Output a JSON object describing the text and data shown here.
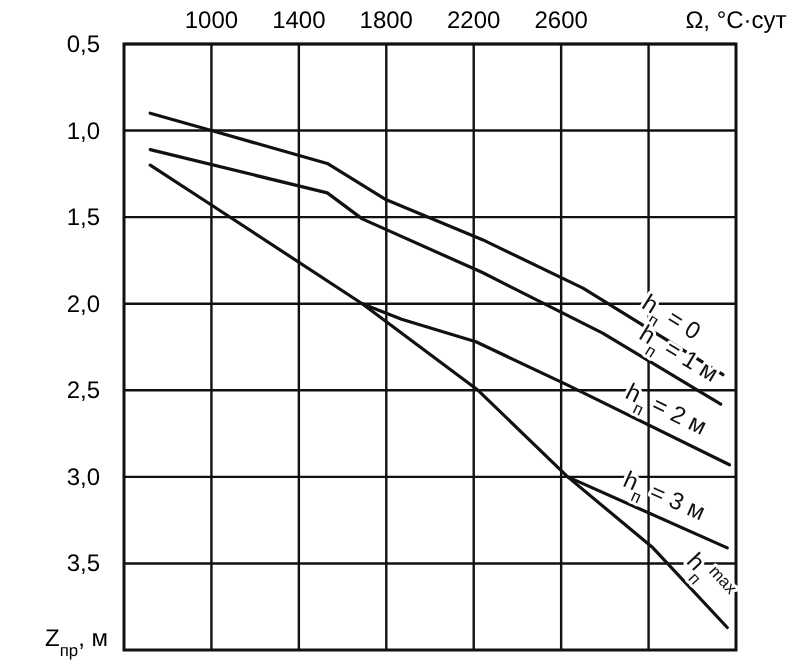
{
  "chart_data": {
    "type": "line",
    "xlabel": "Ω, °C·сут",
    "ylabel": "Z$_{пр}$, м",
    "xlim": [
      600,
      3400
    ],
    "ylim": [
      4.0,
      0.5
    ],
    "xticks": [
      1000,
      1400,
      1800,
      2200,
      2600,
      {
        "value": 3000,
        "label": null
      }
    ],
    "yticks": [
      {
        "value": 0.5,
        "label": "0,5"
      },
      {
        "value": 1.0,
        "label": "1,0"
      },
      {
        "value": 1.5,
        "label": "1,5"
      },
      {
        "value": 2.0,
        "label": "2,0"
      },
      {
        "value": 2.5,
        "label": "2,5"
      },
      {
        "value": 3.0,
        "label": "3,0"
      },
      {
        "value": 3.5,
        "label": "3,5"
      }
    ],
    "grid": true,
    "marker": "none",
    "line_style": "solid",
    "series": [
      {
        "name": "h$_{п}$ = 0",
        "color": "#111111",
        "x": [
          720,
          1000,
          1530,
          1800,
          2240,
          2700,
          3340
        ],
        "values": [
          0.9,
          1.0,
          1.19,
          1.4,
          1.63,
          1.91,
          2.41
        ]
      },
      {
        "name": "h$_{п}$ = 1 м",
        "color": "#111111",
        "x": [
          720,
          1530,
          1690,
          2240,
          2790,
          3330
        ],
        "values": [
          1.11,
          1.36,
          1.51,
          1.82,
          2.17,
          2.58
        ]
      },
      {
        "name": "h$_{п}$ = 2 м",
        "color": "#111111",
        "x": [
          1690,
          1870,
          2210,
          2630,
          3370
        ],
        "values": [
          2.0,
          2.09,
          2.22,
          2.47,
          2.93
        ]
      },
      {
        "name": "h$_{п}$$^{max}$",
        "color": "#111111",
        "x": [
          720,
          1000,
          1690,
          2220,
          2630,
          3020,
          3360
        ],
        "values": [
          1.2,
          1.43,
          2.0,
          2.5,
          3.0,
          3.41,
          3.87
        ]
      },
      {
        "name": "h$_{п}$ = 3 м",
        "color": "#111111",
        "x": [
          2630,
          3360
        ],
        "values": [
          3.0,
          3.41
        ]
      }
    ]
  }
}
